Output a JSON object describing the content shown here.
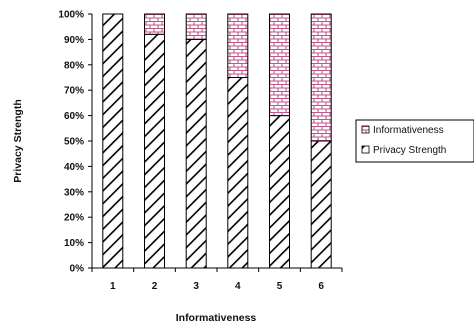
{
  "chart_data": {
    "type": "bar",
    "stacked": true,
    "percent": true,
    "categories": [
      "1",
      "2",
      "3",
      "4",
      "5",
      "6"
    ],
    "series": [
      {
        "name": "Privacy Strength",
        "values": [
          100,
          92,
          90,
          75,
          60,
          50
        ],
        "pattern": "diagonal-hatch",
        "color": "#000000"
      },
      {
        "name": "Informativeness",
        "values": [
          0,
          8,
          10,
          25,
          40,
          50
        ],
        "pattern": "brick",
        "color": "#c0568a"
      }
    ],
    "xlabel": "Informativeness",
    "ylabel": "Privacy Strength",
    "ylim": [
      0,
      100
    ],
    "yticks": [
      "0%",
      "10%",
      "20%",
      "30%",
      "40%",
      "50%",
      "60%",
      "70%",
      "80%",
      "90%",
      "100%"
    ],
    "grid": false,
    "legend_position": "right",
    "legend_order": [
      "Informativeness",
      "Privacy Strength"
    ]
  }
}
